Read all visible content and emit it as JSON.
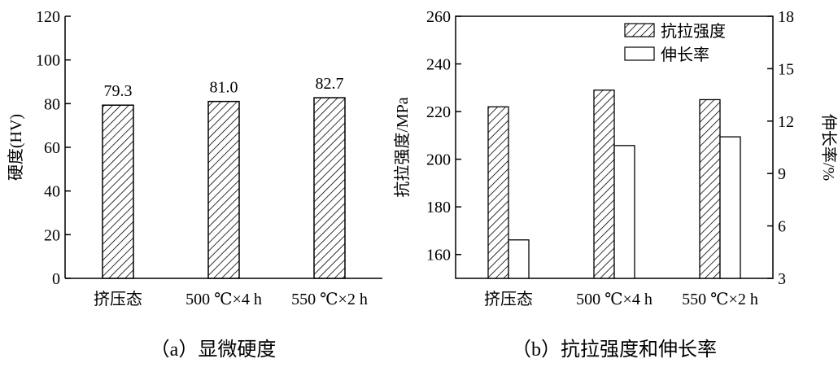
{
  "chart_data": [
    {
      "type": "bar",
      "caption": "（a）显微硬度",
      "categories": [
        "挤压态",
        "500 ℃×4 h",
        "550 ℃×2 h"
      ],
      "values": [
        79.3,
        81.0,
        82.7
      ],
      "data_labels": [
        "79.3",
        "81.0",
        "82.7"
      ],
      "ylabel": "硬度(HV)",
      "ylim": [
        0,
        120
      ],
      "yticks": [
        0,
        20,
        40,
        60,
        80,
        100,
        120
      ],
      "grid": false,
      "bar_pattern": "hatched"
    },
    {
      "type": "bar",
      "caption": "（b）抗拉强度和伸长率",
      "categories": [
        "挤压态",
        "500 ℃×4 h",
        "550 ℃×2 h"
      ],
      "series": [
        {
          "name": "抗拉强度",
          "axis": "left",
          "pattern": "hatched",
          "values": [
            222,
            229,
            225
          ]
        },
        {
          "name": "伸长率",
          "axis": "right",
          "pattern": "open",
          "values": [
            5.2,
            10.6,
            11.1
          ]
        }
      ],
      "ylabel_left": "抗拉强度/MPa",
      "ylabel_right": "伸长率/%",
      "ylim_left": [
        150,
        260
      ],
      "yticks_left": [
        160,
        180,
        200,
        220,
        240,
        260
      ],
      "ylim_right": [
        3,
        18
      ],
      "yticks_right": [
        3,
        6,
        9,
        12,
        15,
        18
      ],
      "legend_placement": "top-right",
      "grid": false
    }
  ]
}
